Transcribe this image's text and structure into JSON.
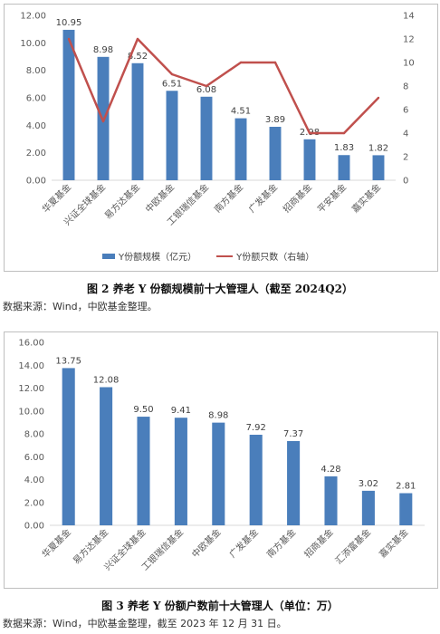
{
  "chart_data": [
    {
      "type": "bar",
      "categories": [
        "华夏基金",
        "兴证全球基金",
        "易方达基金",
        "中欧基金",
        "工银瑞信基金",
        "南方基金",
        "广发基金",
        "招商基金",
        "平安基金",
        "嘉实基金"
      ],
      "series": [
        {
          "name": "Y份额规模（亿元）",
          "type": "bar",
          "axis": "left",
          "values": [
            10.95,
            8.98,
            8.52,
            6.51,
            6.08,
            4.51,
            3.89,
            2.98,
            1.83,
            1.82
          ],
          "labels": [
            "10.95",
            "8.98",
            "8.52",
            "6.51",
            "6.08",
            "4.51",
            "3.89",
            "2.98",
            "1.83",
            "1.82"
          ]
        },
        {
          "name": "Y份额只数（右轴）",
          "type": "line",
          "axis": "right",
          "values": [
            12,
            5,
            12,
            9,
            8,
            10,
            10,
            4,
            4,
            7
          ]
        }
      ],
      "ylim": [
        0,
        12
      ],
      "y_ticks": [
        "0.00",
        "2.00",
        "4.00",
        "6.00",
        "8.00",
        "10.00",
        "12.00"
      ],
      "y2lim": [
        0,
        14
      ],
      "y2_ticks": [
        "0",
        "2",
        "4",
        "6",
        "8",
        "10",
        "12",
        "14"
      ],
      "grid": false,
      "legend": "bottom",
      "colors": {
        "bar": "#4a7ebb",
        "line": "#c0504d"
      }
    },
    {
      "type": "bar",
      "categories": [
        "华夏基金",
        "易方达基金",
        "兴证全球基金",
        "工银瑞信基金",
        "中欧基金",
        "广发基金",
        "南方基金",
        "招商基金",
        "汇添富基金",
        "嘉实基金"
      ],
      "series": [
        {
          "values": [
            13.75,
            12.08,
            9.5,
            9.41,
            8.98,
            7.92,
            7.37,
            4.28,
            3.02,
            2.81
          ],
          "labels": [
            "13.75",
            "12.08",
            "9.50",
            "9.41",
            "8.98",
            "7.92",
            "7.37",
            "4.28",
            "3.02",
            "2.81"
          ]
        }
      ],
      "ylim": [
        0,
        16
      ],
      "y_ticks": [
        "0.00",
        "2.00",
        "4.00",
        "6.00",
        "8.00",
        "10.00",
        "12.00",
        "14.00",
        "16.00"
      ],
      "grid": false,
      "colors": {
        "bar": "#4a7ebb"
      }
    }
  ],
  "captions": {
    "fig2": "图 2  养老 Y 份额规模前十大管理人（截至 2024Q2）",
    "fig2_source": "数据来源：Wind，中欧基金整理。",
    "fig3": "图 3  养老 Y 份额户数前十大管理人（单位：万）",
    "fig3_source": "数据来源：Wind，中欧基金整理，截至 2023 年 12 月 31 日。"
  }
}
